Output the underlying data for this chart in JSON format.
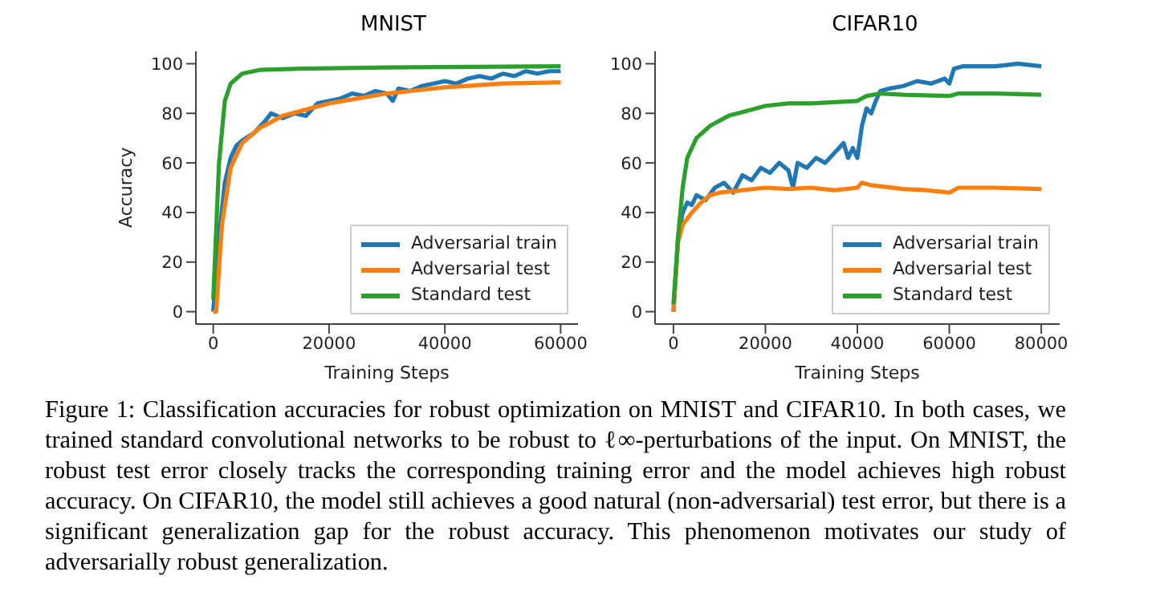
{
  "chart_data": [
    {
      "type": "line",
      "title": "MNIST",
      "xlabel": "Training Steps",
      "ylabel": "Accuracy",
      "xlim": [
        -3000,
        63000
      ],
      "xticks": [
        0,
        20000,
        40000,
        60000
      ],
      "ylim": [
        -5,
        105
      ],
      "yticks": [
        0,
        20,
        40,
        60,
        80,
        100
      ],
      "grid": false,
      "legend": "bottom right",
      "marker": "none",
      "line_style": "solid",
      "annotations": [
        "Figure 1: Classification accuracies for robust optimization on MNIST and CIFAR10. In both cases, we trained standard convolutional networks to be robust to ℓ∞-perturbations of the input. On MNIST, the robust test error closely tracks the corresponding training error and the model achieves high robust accuracy. On CIFAR10, the model still achieves a good natural (non-adversarial) test error, but there is a significant generalization gap for the robust accuracy. This phenomenon motivates our study of adversarially robust generalization."
      ],
      "series": [
        {
          "name": "Adversarial train",
          "color": "#1f77b4",
          "x": [
            0,
            1000,
            2000,
            3000,
            4000,
            5000,
            7000,
            9000,
            10000,
            12000,
            14000,
            16000,
            18000,
            20000,
            22000,
            24000,
            26000,
            28000,
            30000,
            31000,
            32000,
            34000,
            36000,
            38000,
            40000,
            42000,
            44000,
            46000,
            48000,
            50000,
            52000,
            54000,
            56000,
            58000,
            60000
          ],
          "values": [
            0,
            30,
            52,
            62,
            67,
            69,
            72,
            77,
            80,
            78,
            80,
            79,
            84,
            85,
            86,
            88,
            87,
            89,
            88,
            85,
            90,
            89,
            91,
            92,
            93,
            92,
            94,
            95,
            94,
            96,
            95,
            97,
            96,
            97,
            97
          ]
        },
        {
          "name": "Adversarial test",
          "color": "#ff7f0e",
          "x": [
            0,
            500,
            1500,
            3000,
            5000,
            8000,
            12000,
            20000,
            30000,
            40000,
            50000,
            60000
          ],
          "values": [
            0,
            0,
            35,
            58,
            68,
            74,
            79,
            84,
            88,
            90.5,
            92,
            92.5
          ]
        },
        {
          "name": "Standard test",
          "color": "#2ca02c",
          "x": [
            0,
            1000,
            2000,
            3000,
            5000,
            8000,
            15000,
            30000,
            60000
          ],
          "values": [
            5,
            60,
            85,
            92,
            96,
            97.5,
            98,
            98.5,
            99
          ]
        }
      ]
    },
    {
      "type": "line",
      "title": "CIFAR10",
      "xlabel": "Training Steps",
      "xlim": [
        -4000,
        84000
      ],
      "xticks": [
        0,
        20000,
        40000,
        60000,
        80000
      ],
      "ylim": [
        -5,
        105
      ],
      "yticks": [
        0,
        20,
        40,
        60,
        80,
        100
      ],
      "grid": false,
      "legend": "bottom right",
      "marker": "none",
      "line_style": "solid",
      "series": [
        {
          "name": "Adversarial train",
          "color": "#1f77b4",
          "x": [
            0,
            1000,
            2000,
            3000,
            4000,
            5000,
            7000,
            9000,
            11000,
            13000,
            15000,
            17000,
            19000,
            21000,
            23000,
            25000,
            26000,
            27000,
            29000,
            31000,
            33000,
            35000,
            37000,
            38000,
            39000,
            40000,
            41000,
            42000,
            43000,
            44000,
            45000,
            47000,
            50000,
            53000,
            56000,
            59000,
            60000,
            61000,
            63000,
            70000,
            75000,
            80000
          ],
          "values": [
            0,
            30,
            40,
            44,
            43,
            47,
            45,
            50,
            52,
            48,
            55,
            53,
            58,
            56,
            60,
            57,
            50,
            60,
            58,
            62,
            60,
            64,
            68,
            62,
            66,
            62,
            75,
            82,
            80,
            85,
            89,
            90,
            91,
            93,
            92,
            94,
            92,
            98,
            99,
            99,
            100,
            99
          ]
        },
        {
          "name": "Adversarial test",
          "color": "#ff7f0e",
          "x": [
            0,
            1000,
            2000,
            4000,
            6000,
            8000,
            10000,
            15000,
            20000,
            25000,
            30000,
            35000,
            40000,
            41000,
            43000,
            50000,
            55000,
            60000,
            62000,
            70000,
            80000
          ],
          "values": [
            0,
            28,
            35,
            40,
            44,
            47,
            48,
            49,
            50,
            49.5,
            50,
            49,
            50,
            52,
            51,
            49.5,
            49,
            48,
            50,
            50,
            49.5
          ]
        },
        {
          "name": "Standard test",
          "color": "#2ca02c",
          "x": [
            0,
            1000,
            2000,
            3000,
            5000,
            8000,
            12000,
            16000,
            20000,
            25000,
            30000,
            35000,
            40000,
            42000,
            45000,
            50000,
            60000,
            62000,
            70000,
            80000
          ],
          "values": [
            3,
            30,
            50,
            62,
            70,
            75,
            79,
            81,
            83,
            84,
            84,
            84.5,
            85,
            87,
            88,
            87.5,
            87,
            88,
            88,
            87.5
          ]
        }
      ]
    }
  ]
}
